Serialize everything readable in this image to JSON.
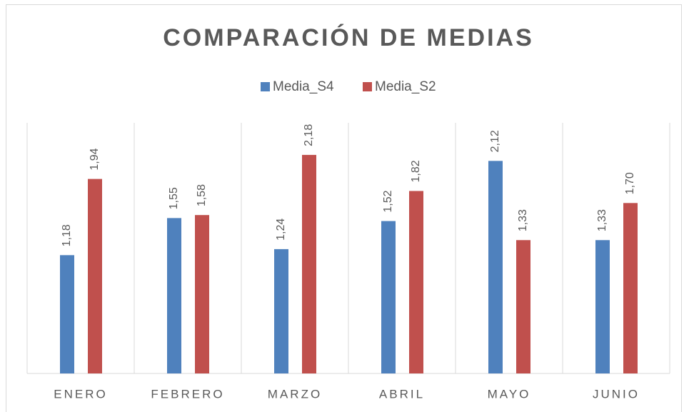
{
  "chart_data": {
    "type": "bar",
    "title": "COMPARACIÓN DE MEDIAS",
    "categories": [
      "ENERO",
      "FEBRERO",
      "MARZO",
      "ABRIL",
      "MAYO",
      "JUNIO"
    ],
    "series": [
      {
        "name": "Media_S4",
        "color": "#4f81bd",
        "values": [
          1.18,
          1.55,
          1.24,
          1.52,
          2.12,
          1.33
        ],
        "value_labels": [
          "1,18",
          "1,55",
          "1,24",
          "1,52",
          "2,12",
          "1,33"
        ]
      },
      {
        "name": "Media_S2",
        "color": "#c0504d",
        "values": [
          1.94,
          1.58,
          2.18,
          1.82,
          1.33,
          1.7
        ],
        "value_labels": [
          "1,94",
          "1,58",
          "2,18",
          "1,82",
          "1,33",
          "1,70"
        ]
      }
    ],
    "ylim": [
      0,
      2.5
    ],
    "legend": "top"
  }
}
